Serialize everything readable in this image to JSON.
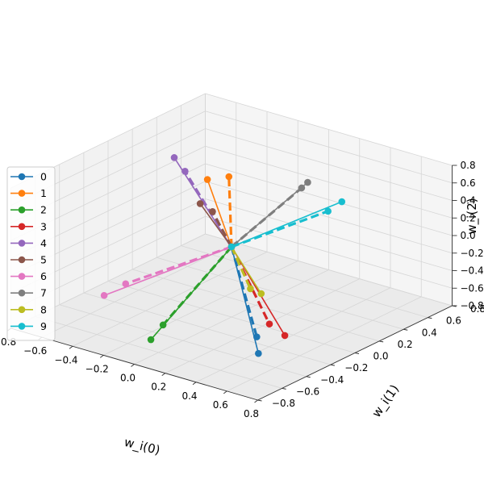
{
  "chart_data": {
    "type": "line",
    "projection": "3d",
    "xlabel": "w_i(0)",
    "ylabel": "w_i(1)",
    "zlabel": "w_i(2)",
    "xlim": [
      -0.8,
      0.8
    ],
    "ylim": [
      -0.8,
      0.8
    ],
    "zlim": [
      -0.8,
      0.8
    ],
    "ticks": [
      "−0.8",
      "−0.6",
      "−0.4",
      "−0.2",
      "0.0",
      "0.2",
      "0.4",
      "0.6",
      "0.8"
    ],
    "grid": true,
    "legend_position": "left",
    "line_styles": {
      "solid": "marker end",
      "dashed": "second marker end"
    },
    "series": [
      {
        "name": "0",
        "color": "#1f77b4",
        "solid_end": [
          0.45,
          -0.35,
          -0.75
        ],
        "dashed_end": [
          0.4,
          -0.3,
          -0.62
        ]
      },
      {
        "name": "1",
        "color": "#ff7f0e",
        "solid_end": [
          -0.55,
          0.5,
          0.15
        ],
        "dashed_end": [
          -0.45,
          0.55,
          0.2
        ]
      },
      {
        "name": "2",
        "color": "#2ca02c",
        "solid_end": [
          -0.05,
          -0.6,
          -0.68
        ],
        "dashed_end": [
          -0.05,
          -0.5,
          -0.58
        ]
      },
      {
        "name": "3",
        "color": "#d62728",
        "solid_end": [
          0.7,
          -0.45,
          -0.35
        ],
        "dashed_end": [
          0.6,
          -0.45,
          -0.27
        ]
      },
      {
        "name": "4",
        "color": "#9467bd",
        "solid_end": [
          -0.45,
          0.1,
          0.72
        ],
        "dashed_end": [
          -0.38,
          0.1,
          0.6
        ]
      },
      {
        "name": "5",
        "color": "#8c564b",
        "solid_end": [
          -0.4,
          0.25,
          0.12
        ],
        "dashed_end": [
          -0.32,
          0.25,
          0.07
        ]
      },
      {
        "name": "6",
        "color": "#e377c2",
        "solid_end": [
          -0.55,
          -0.35,
          -0.6
        ],
        "dashed_end": [
          -0.45,
          -0.3,
          -0.45
        ]
      },
      {
        "name": "7",
        "color": "#7f7f7f",
        "solid_end": [
          0.1,
          0.5,
          0.45
        ],
        "dashed_end": [
          0.1,
          0.45,
          0.42
        ]
      },
      {
        "name": "8",
        "color": "#bcbd22",
        "solid_end": [
          0.35,
          -0.2,
          -0.22
        ],
        "dashed_end": [
          0.28,
          -0.2,
          -0.2
        ]
      },
      {
        "name": "9",
        "color": "#17becf",
        "solid_end": [
          0.4,
          0.4,
          0.45
        ],
        "dashed_end": [
          0.35,
          0.35,
          0.35
        ]
      }
    ]
  }
}
